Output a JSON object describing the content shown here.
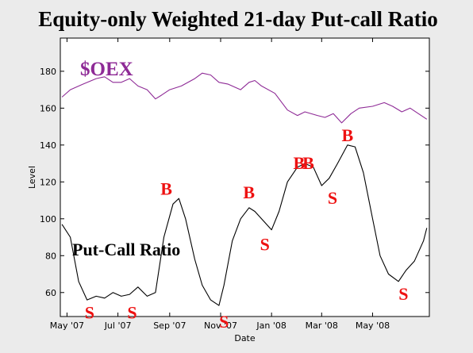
{
  "chart_data": {
    "type": "line",
    "title": "Equity-only Weighted 21-day Put-call Ratio",
    "xlabel": "Date",
    "ylabel": "Level",
    "x_start": "2007-04-23",
    "x_end": "2008-07-08",
    "ylim": [
      47,
      198
    ],
    "y_ticks": [
      60,
      80,
      100,
      120,
      140,
      160,
      180
    ],
    "x_ticks": [
      {
        "label": "May '07",
        "date": "2007-05-01"
      },
      {
        "label": "Jul '07",
        "date": "2007-07-01"
      },
      {
        "label": "Sep '07",
        "date": "2007-09-01"
      },
      {
        "label": "Nov '07",
        "date": "2007-11-01"
      },
      {
        "label": "Jan '08",
        "date": "2008-01-01"
      },
      {
        "label": "Mar '08",
        "date": "2008-03-01"
      },
      {
        "label": "May '08",
        "date": "2008-05-01"
      }
    ],
    "colors": {
      "oex": "#8e2a96",
      "pcr": "#000000",
      "signal": "#ee1111"
    },
    "series": [
      {
        "name": "$OEX",
        "x": [
          "2007-04-25",
          "2007-05-05",
          "2007-05-20",
          "2007-06-05",
          "2007-06-15",
          "2007-06-25",
          "2007-07-05",
          "2007-07-15",
          "2007-07-25",
          "2007-08-05",
          "2007-08-15",
          "2007-08-22",
          "2007-09-01",
          "2007-09-15",
          "2007-10-01",
          "2007-10-10",
          "2007-10-20",
          "2007-10-30",
          "2007-11-10",
          "2007-11-25",
          "2007-12-05",
          "2007-12-12",
          "2007-12-20",
          "2008-01-05",
          "2008-01-20",
          "2008-02-01",
          "2008-02-10",
          "2008-02-25",
          "2008-03-05",
          "2008-03-15",
          "2008-03-25",
          "2008-04-05",
          "2008-04-15",
          "2008-05-01",
          "2008-05-15",
          "2008-05-25",
          "2008-06-05",
          "2008-06-15",
          "2008-06-25",
          "2008-07-05"
        ],
        "values": [
          166,
          170,
          173,
          176,
          177,
          174,
          174,
          176,
          172,
          170,
          165,
          167,
          170,
          172,
          176,
          179,
          178,
          174,
          173,
          170,
          174,
          175,
          172,
          168,
          159,
          156,
          158,
          156,
          155,
          157,
          152,
          157,
          160,
          161,
          163,
          161,
          158,
          160,
          157,
          154
        ]
      },
      {
        "name": "Put-Call Ratio",
        "x": [
          "2007-04-25",
          "2007-05-05",
          "2007-05-15",
          "2007-05-25",
          "2007-06-05",
          "2007-06-15",
          "2007-06-25",
          "2007-07-05",
          "2007-07-15",
          "2007-07-25",
          "2007-08-05",
          "2007-08-15",
          "2007-08-25",
          "2007-09-05",
          "2007-09-12",
          "2007-09-20",
          "2007-10-01",
          "2007-10-10",
          "2007-10-20",
          "2007-10-30",
          "2007-11-05",
          "2007-11-15",
          "2007-11-25",
          "2007-12-05",
          "2007-12-12",
          "2007-12-20",
          "2008-01-01",
          "2008-01-10",
          "2008-01-20",
          "2008-02-01",
          "2008-02-10",
          "2008-02-20",
          "2008-03-01",
          "2008-03-10",
          "2008-03-20",
          "2008-04-01",
          "2008-04-10",
          "2008-04-20",
          "2008-05-01",
          "2008-05-10",
          "2008-05-20",
          "2008-06-01",
          "2008-06-10",
          "2008-06-20",
          "2008-07-01",
          "2008-07-05"
        ],
        "values": [
          97,
          90,
          66,
          56,
          58,
          57,
          60,
          58,
          59,
          63,
          58,
          60,
          90,
          108,
          111,
          100,
          78,
          64,
          56,
          53,
          64,
          88,
          100,
          106,
          104,
          100,
          94,
          104,
          120,
          128,
          130,
          128,
          118,
          122,
          130,
          140,
          139,
          125,
          100,
          80,
          70,
          66,
          72,
          77,
          88,
          95
        ]
      }
    ],
    "series_labels": [
      "$OEX",
      "Put-Call Ratio"
    ],
    "annotations": [
      {
        "text": "B",
        "date": "2007-08-28",
        "y": 113
      },
      {
        "text": "B",
        "date": "2007-12-05",
        "y": 111
      },
      {
        "text": "B",
        "date": "2008-02-03",
        "y": 127
      },
      {
        "text": "B",
        "date": "2008-02-14",
        "y": 127
      },
      {
        "text": "B",
        "date": "2008-04-01",
        "y": 142
      },
      {
        "text": "S",
        "date": "2007-05-28",
        "y": 46
      },
      {
        "text": "S",
        "date": "2007-07-18",
        "y": 46
      },
      {
        "text": "S",
        "date": "2007-11-05",
        "y": 41
      },
      {
        "text": "S",
        "date": "2007-12-24",
        "y": 83
      },
      {
        "text": "S",
        "date": "2008-03-14",
        "y": 108
      },
      {
        "text": "S",
        "date": "2008-06-07",
        "y": 56
      }
    ]
  }
}
